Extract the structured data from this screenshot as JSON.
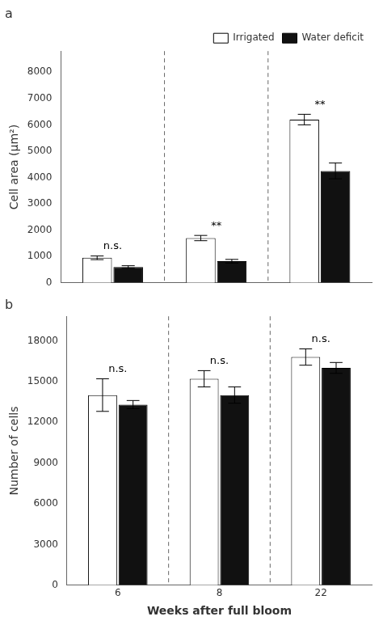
{
  "chart_data": [
    {
      "type": "bar",
      "title": "a",
      "categories": [
        null,
        null,
        null
      ],
      "series": [
        {
          "name": "Irrigated",
          "color": "#ffffff",
          "values": [
            950,
            1700,
            6200
          ],
          "errors": [
            70,
            100,
            200
          ]
        },
        {
          "name": "Water deficit",
          "color": "#111111",
          "values": [
            600,
            820,
            4250
          ],
          "errors": [
            50,
            70,
            300
          ]
        }
      ],
      "annotations": [
        "n.s.",
        "**",
        "**"
      ],
      "ylabel": "Cell area (μm²)",
      "ylim": [
        0,
        8800
      ],
      "yticks": [
        0,
        1000,
        2000,
        3000,
        4000,
        5000,
        6000,
        7000,
        8000
      ],
      "grid": false,
      "legend": "upper right",
      "tick_labels": "y"
    },
    {
      "type": "bar",
      "title": "b",
      "categories": [
        "6",
        "8",
        "22"
      ],
      "series": [
        {
          "name": "Irrigated",
          "color": "#ffffff",
          "values": [
            14000,
            15200,
            16800
          ],
          "errors": [
            1200,
            600,
            600
          ]
        },
        {
          "name": "Water deficit",
          "color": "#111111",
          "values": [
            13300,
            14000,
            16000
          ],
          "errors": [
            300,
            600,
            400
          ]
        }
      ],
      "annotations": [
        "n.s.",
        "n.s.",
        "n.s."
      ],
      "xlabel": "Weeks after full bloom",
      "ylabel": "Number of cells",
      "ylim": [
        0,
        19800
      ],
      "yticks": [
        0,
        3000,
        6000,
        9000,
        12000,
        15000,
        18000
      ],
      "grid": false,
      "legend": false
    }
  ]
}
